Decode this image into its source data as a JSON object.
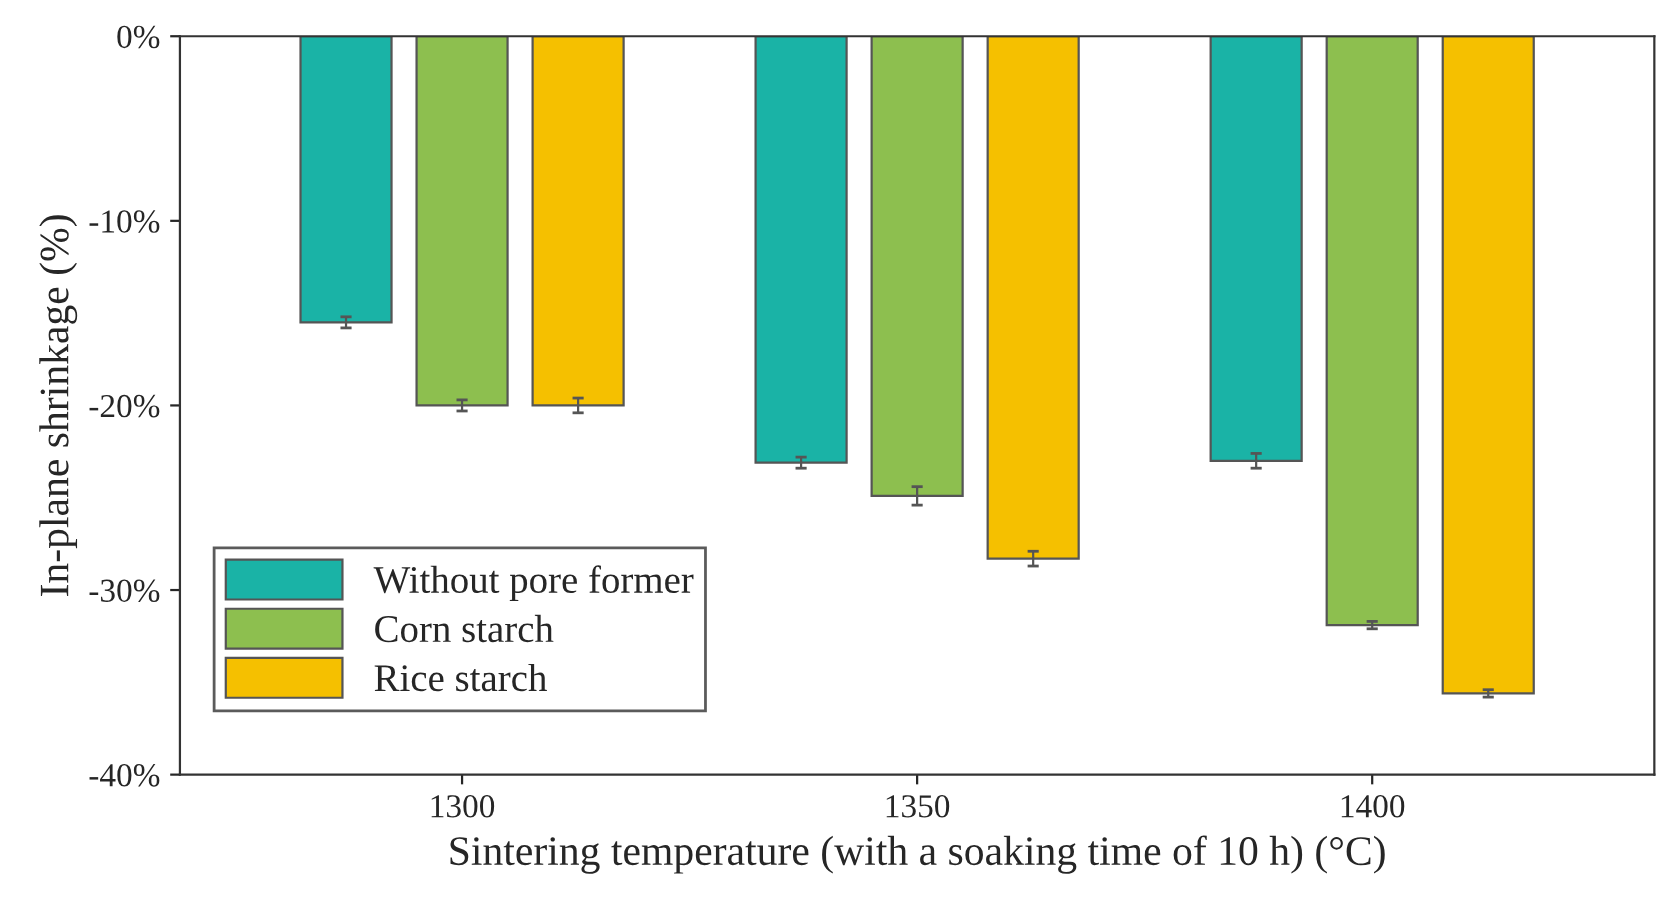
{
  "chart_data": {
    "type": "bar",
    "xlabel": "Sintering temperature (with a soaking time of 10 h) (°C)",
    "ylabel": "In-plane shrinkage (%)",
    "categories": [
      "1300",
      "1350",
      "1400"
    ],
    "series": [
      {
        "name": "Without pore former",
        "color": "#1ab3a6",
        "values": [
          -15.5,
          -23.1,
          -23.0
        ],
        "errors": [
          0.3,
          0.3,
          0.4
        ]
      },
      {
        "name": "Corn starch",
        "color": "#8dbf4f",
        "values": [
          -20.0,
          -24.9,
          -31.9
        ],
        "errors": [
          0.3,
          0.5,
          0.2
        ]
      },
      {
        "name": "Rice starch",
        "color": "#f5c000",
        "values": [
          -20.0,
          -28.3,
          -35.6
        ],
        "errors": [
          0.4,
          0.4,
          0.2
        ]
      }
    ],
    "ylim": [
      -40,
      0
    ],
    "yticks": [
      {
        "value": -40,
        "label": "-40%"
      },
      {
        "value": -30,
        "label": "-30%"
      },
      {
        "value": -20,
        "label": "-20%"
      },
      {
        "value": -10,
        "label": "-10%"
      },
      {
        "value": 0,
        "label": "0%"
      }
    ],
    "legend": "bottom left",
    "grid": false
  }
}
